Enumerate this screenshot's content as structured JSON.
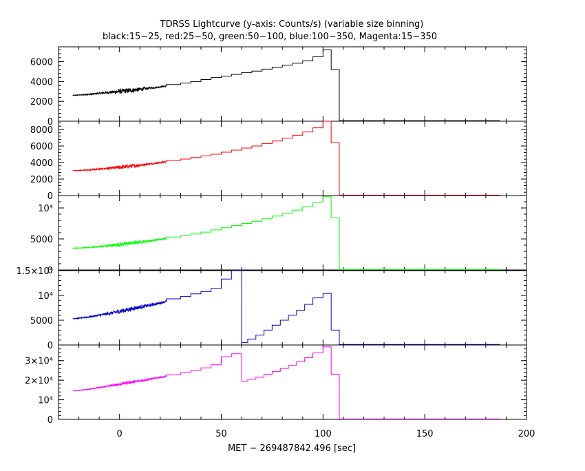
{
  "title": "TDRSS Lightcurve (y-axis: Counts/s) (variable size binning)",
  "subtitle": "black:15−25, red:25−50, green:50−100, blue:100−350, Magenta:15−350",
  "xlabel": "MET − 269487842.496 [sec]",
  "x_tick_labels": [
    "0",
    "50",
    "100",
    "150",
    "200"
  ],
  "x_ticks": [
    0,
    50,
    100,
    150,
    200
  ],
  "x_range": [
    -30,
    200
  ],
  "chart_data": [
    {
      "type": "line",
      "band": "15-25",
      "color": "#000000",
      "ylim": [
        0,
        7500
      ],
      "y_ticks": [
        0,
        2000,
        4000,
        6000
      ],
      "y_tick_labels": [
        "0",
        "2000",
        "4000",
        "6000"
      ],
      "noisy_x_range": [
        -23,
        23
      ],
      "noisy_values": [
        2600,
        2650,
        2700,
        2780,
        2860,
        2930,
        3000,
        3080,
        3160,
        3250,
        3350,
        3450,
        3560
      ],
      "noise_amplitude": [
        40,
        40,
        60,
        80,
        100,
        140,
        250,
        250,
        220,
        150,
        100,
        80,
        70
      ],
      "bins": [
        [
          23,
          30,
          3700
        ],
        [
          30,
          35,
          3850
        ],
        [
          35,
          40,
          4000
        ],
        [
          40,
          45,
          4200
        ],
        [
          45,
          50,
          4400
        ],
        [
          50,
          55,
          4550
        ],
        [
          55,
          60,
          4720
        ],
        [
          60,
          65,
          4900
        ],
        [
          65,
          70,
          5050
        ],
        [
          70,
          75,
          5250
        ],
        [
          75,
          80,
          5450
        ],
        [
          80,
          85,
          5650
        ],
        [
          85,
          90,
          5850
        ],
        [
          90,
          95,
          6100
        ],
        [
          95,
          100,
          6500
        ],
        [
          100,
          104,
          7200
        ],
        [
          104,
          108,
          5200
        ],
        [
          108,
          187,
          50
        ]
      ]
    },
    {
      "type": "line",
      "band": "25-50",
      "color": "#ff0000",
      "ylim": [
        0,
        9000
      ],
      "y_ticks": [
        0,
        2000,
        4000,
        6000,
        8000
      ],
      "y_tick_labels": [
        "0",
        "2000",
        "4000",
        "6000",
        "8000"
      ],
      "noisy_x_range": [
        -23,
        23
      ],
      "noisy_values": [
        3000,
        3050,
        3100,
        3170,
        3250,
        3330,
        3420,
        3510,
        3620,
        3730,
        3850,
        3970,
        4100
      ],
      "noise_amplitude": [
        40,
        40,
        60,
        90,
        110,
        150,
        250,
        240,
        220,
        160,
        110,
        90,
        80
      ],
      "bins": [
        [
          23,
          30,
          4250
        ],
        [
          30,
          35,
          4420
        ],
        [
          35,
          40,
          4600
        ],
        [
          40,
          45,
          4800
        ],
        [
          45,
          50,
          5000
        ],
        [
          50,
          55,
          5250
        ],
        [
          55,
          60,
          5500
        ],
        [
          60,
          65,
          5750
        ],
        [
          65,
          70,
          6000
        ],
        [
          70,
          75,
          6300
        ],
        [
          75,
          80,
          6600
        ],
        [
          80,
          85,
          6950
        ],
        [
          85,
          90,
          7300
        ],
        [
          90,
          95,
          7700
        ],
        [
          95,
          100,
          8200
        ],
        [
          100,
          104,
          9000
        ],
        [
          104,
          108,
          6400
        ],
        [
          108,
          187,
          50
        ]
      ]
    },
    {
      "type": "line",
      "band": "50-100",
      "color": "#00ff00",
      "ylim": [
        0,
        12000
      ],
      "y_ticks": [
        0,
        5000,
        10000
      ],
      "y_tick_labels": [
        "0",
        "5000",
        "10⁴"
      ],
      "noisy_x_range": [
        -23,
        23
      ],
      "noisy_values": [
        3500,
        3550,
        3620,
        3720,
        3830,
        3950,
        4100,
        4250,
        4400,
        4560,
        4720,
        4900,
        5100
      ],
      "noise_amplitude": [
        50,
        50,
        80,
        110,
        150,
        220,
        350,
        330,
        280,
        220,
        160,
        120,
        110
      ],
      "bins": [
        [
          23,
          30,
          5300
        ],
        [
          30,
          35,
          5550
        ],
        [
          35,
          40,
          5800
        ],
        [
          40,
          45,
          6100
        ],
        [
          45,
          50,
          6450
        ],
        [
          50,
          55,
          6800
        ],
        [
          55,
          60,
          7150
        ],
        [
          60,
          65,
          7500
        ],
        [
          65,
          70,
          7850
        ],
        [
          70,
          75,
          8250
        ],
        [
          75,
          80,
          8700
        ],
        [
          80,
          85,
          9150
        ],
        [
          85,
          90,
          9650
        ],
        [
          90,
          95,
          10200
        ],
        [
          95,
          100,
          10900
        ],
        [
          100,
          104,
          11800
        ],
        [
          104,
          108,
          8400
        ],
        [
          108,
          187,
          60
        ]
      ]
    },
    {
      "type": "line",
      "band": "100-350",
      "color": "#0000cc",
      "ylim": [
        0,
        15000
      ],
      "y_ticks": [
        0,
        5000,
        10000,
        15000
      ],
      "y_tick_labels": [
        "0",
        "5000",
        "10⁴",
        "1.5×10⁴"
      ],
      "noisy_x_range": [
        -23,
        23
      ],
      "noisy_values": [
        5300,
        5450,
        5650,
        5900,
        6150,
        6450,
        6800,
        7100,
        7450,
        7750,
        8050,
        8400,
        8800
      ],
      "noise_amplitude": [
        80,
        90,
        130,
        180,
        250,
        330,
        450,
        450,
        400,
        350,
        300,
        250,
        220
      ],
      "bins": [
        [
          23,
          30,
          9300
        ],
        [
          30,
          35,
          9800
        ],
        [
          35,
          40,
          10300
        ],
        [
          40,
          45,
          10800
        ],
        [
          45,
          50,
          11400
        ],
        [
          50,
          55,
          13300
        ],
        [
          55,
          60,
          15000
        ],
        [
          60,
          63,
          500
        ],
        [
          63,
          67,
          1200
        ],
        [
          67,
          71,
          2000
        ],
        [
          71,
          75,
          3000
        ],
        [
          75,
          79,
          4000
        ],
        [
          79,
          83,
          5000
        ],
        [
          83,
          87,
          6000
        ],
        [
          87,
          91,
          7000
        ],
        [
          91,
          95,
          8200
        ],
        [
          95,
          100,
          9500
        ],
        [
          100,
          104,
          10400
        ],
        [
          104,
          108,
          3000
        ],
        [
          108,
          187,
          100
        ]
      ]
    },
    {
      "type": "line",
      "band": "15-350",
      "color": "#ff00ff",
      "ylim": [
        0,
        38000
      ],
      "y_ticks": [
        0,
        10000,
        20000,
        30000
      ],
      "y_tick_labels": [
        "0",
        "10⁴",
        "2×10⁴",
        "3×10⁴"
      ],
      "noisy_x_range": [
        -23,
        23
      ],
      "noisy_values": [
        14500,
        14900,
        15400,
        16000,
        16600,
        17300,
        18000,
        18700,
        19300,
        19900,
        20600,
        21300,
        22000
      ],
      "noise_amplitude": [
        100,
        120,
        200,
        280,
        400,
        550,
        700,
        700,
        600,
        500,
        420,
        360,
        320
      ],
      "bins": [
        [
          23,
          30,
          22800
        ],
        [
          30,
          35,
          23800
        ],
        [
          35,
          40,
          25000
        ],
        [
          40,
          45,
          26300
        ],
        [
          45,
          50,
          27900
        ],
        [
          50,
          55,
          32000
        ],
        [
          55,
          60,
          33500
        ],
        [
          60,
          63,
          19500
        ],
        [
          63,
          67,
          20500
        ],
        [
          67,
          71,
          21500
        ],
        [
          71,
          75,
          23000
        ],
        [
          75,
          79,
          24500
        ],
        [
          79,
          83,
          26000
        ],
        [
          83,
          87,
          27500
        ],
        [
          87,
          91,
          29500
        ],
        [
          91,
          95,
          31500
        ],
        [
          95,
          100,
          34000
        ],
        [
          100,
          104,
          37000
        ],
        [
          104,
          108,
          23000
        ],
        [
          108,
          187,
          200
        ]
      ]
    }
  ]
}
